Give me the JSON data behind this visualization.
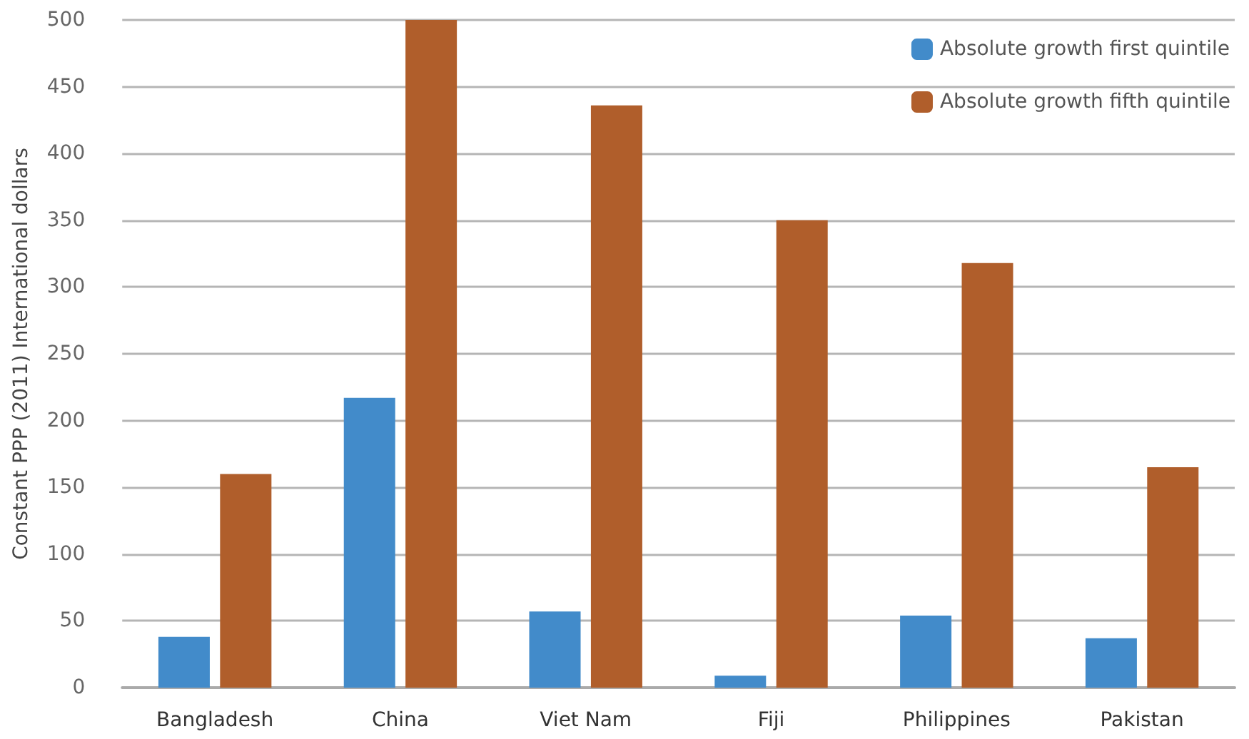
{
  "chart_data": {
    "type": "bar",
    "ylabel": "Constant PPP (2011) International dollars",
    "categories": [
      "Bangladesh",
      "China",
      "Viet Nam",
      "Fiji",
      "Philippines",
      "Pakistan"
    ],
    "series": [
      {
        "name": "Absolute growth first quintile",
        "color": "#428bca",
        "values": [
          38,
          217,
          57,
          9,
          54,
          37
        ]
      },
      {
        "name": "Absolute growth fifth quintile",
        "color": "#b05e2b",
        "values": [
          160,
          500,
          436,
          350,
          318,
          165
        ]
      }
    ],
    "ylim": [
      0,
      500
    ],
    "yticks": [
      0,
      50,
      100,
      150,
      200,
      250,
      300,
      350,
      400,
      450,
      500
    ],
    "grid": "y",
    "legend": "top right"
  }
}
